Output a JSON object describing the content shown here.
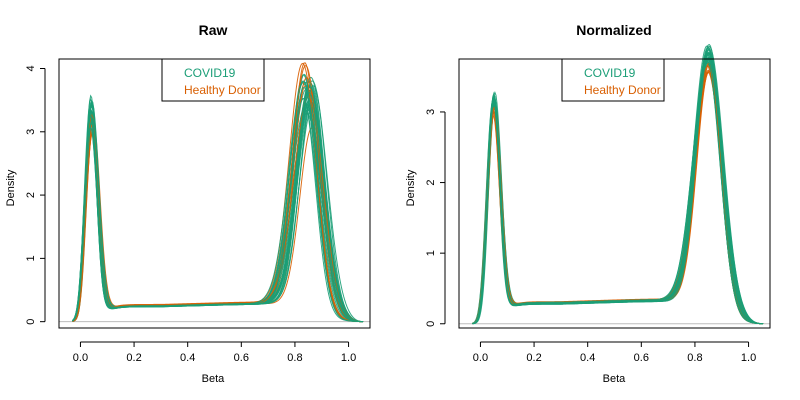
{
  "chart_data": [
    {
      "type": "line",
      "title": "Raw",
      "xlabel": "Beta",
      "ylabel": "Density",
      "xlim": [
        -0.08,
        1.08
      ],
      "ylim": [
        -0.1,
        4.15
      ],
      "xticks": [
        0.0,
        0.2,
        0.4,
        0.6,
        0.8,
        1.0
      ],
      "xtick_labels": [
        "0.0",
        "0.2",
        "0.4",
        "0.6",
        "0.8",
        "1.0"
      ],
      "yticks": [
        0,
        1,
        2,
        3,
        4
      ],
      "ytick_labels": [
        "0",
        "1",
        "2",
        "3",
        "4"
      ],
      "legend": {
        "position": "top-center",
        "entries": [
          {
            "label": "COVID19",
            "color": "#1b9e77"
          },
          {
            "label": "Healthy Donor",
            "color": "#d95f02"
          }
        ]
      },
      "grid": false,
      "baseline": 0,
      "series_groups": [
        {
          "name": "COVID19",
          "color": "#1b9e77",
          "count": 30,
          "peak1": {
            "beta": 0.04,
            "density": [
              3.1,
              3.65
            ]
          },
          "peak2": {
            "beta": [
              0.83,
              0.87
            ],
            "density": [
              3.1,
              3.75
            ]
          },
          "trough_density": 0.25
        },
        {
          "name": "Healthy Donor",
          "color": "#d95f02",
          "count": 8,
          "peak1": {
            "beta": 0.045,
            "density": [
              2.95,
              3.3
            ]
          },
          "peak2": {
            "beta": [
              0.82,
              0.88
            ],
            "density": [
              2.9,
              3.95
            ]
          },
          "trough_density": 0.26
        }
      ]
    },
    {
      "type": "line",
      "title": "Normalized",
      "xlabel": "Beta",
      "ylabel": "Density",
      "xlim": [
        -0.08,
        1.08
      ],
      "ylim": [
        -0.06,
        3.75
      ],
      "xticks": [
        0.0,
        0.2,
        0.4,
        0.6,
        0.8,
        1.0
      ],
      "xtick_labels": [
        "0.0",
        "0.2",
        "0.4",
        "0.6",
        "0.8",
        "1.0"
      ],
      "yticks": [
        0,
        1,
        2,
        3
      ],
      "ytick_labels": [
        "0",
        "1",
        "2",
        "3"
      ],
      "legend": {
        "position": "top-center",
        "entries": [
          {
            "label": "COVID19",
            "color": "#1b9e77"
          },
          {
            "label": "Healthy Donor",
            "color": "#d95f02"
          }
        ]
      },
      "grid": false,
      "baseline": 0,
      "series_groups": [
        {
          "name": "COVID19",
          "color": "#1b9e77",
          "count": 30,
          "peak1": {
            "beta": 0.05,
            "density": [
              3.05,
              3.22
            ]
          },
          "peak2": {
            "beta": 0.85,
            "density": [
              3.5,
              3.78
            ]
          },
          "trough_density": 0.29
        },
        {
          "name": "Healthy Donor",
          "color": "#d95f02",
          "count": 8,
          "peak1": {
            "beta": 0.05,
            "density": [
              2.9,
              3.1
            ]
          },
          "peak2": {
            "beta": 0.85,
            "density": [
              3.35,
              3.5
            ]
          },
          "trough_density": 0.3
        }
      ]
    }
  ]
}
